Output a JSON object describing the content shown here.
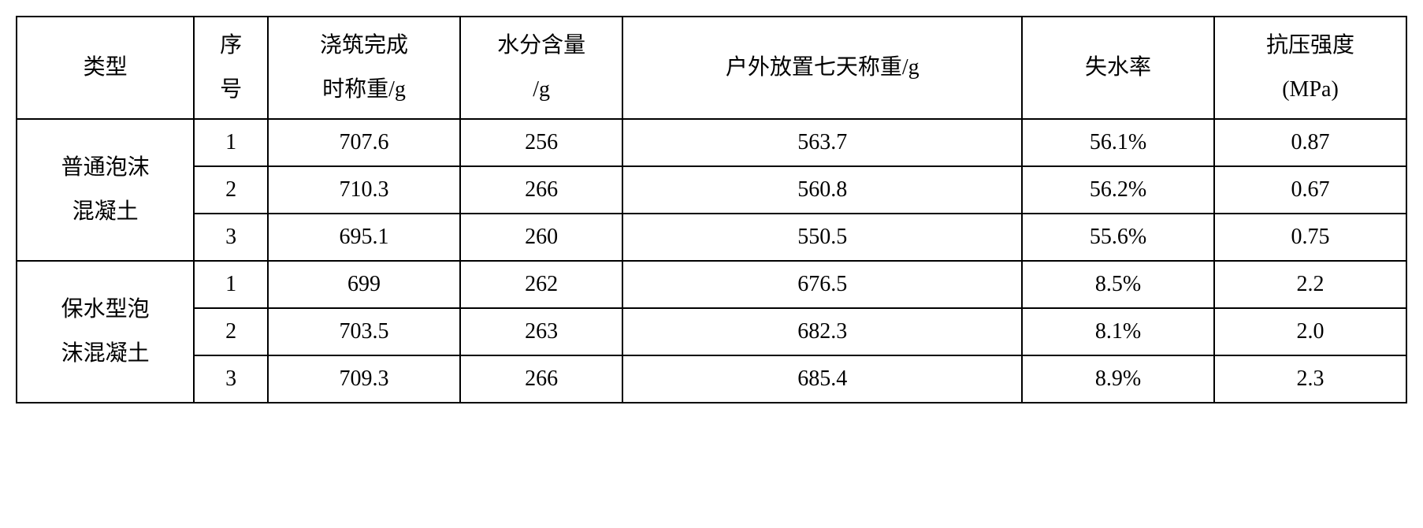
{
  "table": {
    "headers": {
      "type": "类型",
      "seq_line1": "序",
      "seq_line2": "号",
      "weight_pour_line1": "浇筑完成",
      "weight_pour_line2": "时称重/g",
      "moisture_line1": "水分含量",
      "moisture_line2": "/g",
      "weight_7days": "户外放置七天称重/g",
      "loss_rate": "失水率",
      "strength_line1": "抗压强度",
      "strength_line2": "(MPa)"
    },
    "groups": [
      {
        "label_line1": "普通泡沫",
        "label_line2": "混凝土",
        "rows": [
          {
            "seq": "1",
            "weight_pour": "707.6",
            "moisture": "256",
            "weight_7days": "563.7",
            "loss_rate": "56.1%",
            "strength": "0.87"
          },
          {
            "seq": "2",
            "weight_pour": "710.3",
            "moisture": "266",
            "weight_7days": "560.8",
            "loss_rate": "56.2%",
            "strength": "0.67"
          },
          {
            "seq": "3",
            "weight_pour": "695.1",
            "moisture": "260",
            "weight_7days": "550.5",
            "loss_rate": "55.6%",
            "strength": "0.75"
          }
        ]
      },
      {
        "label_line1": "保水型泡",
        "label_line2": "沫混凝土",
        "rows": [
          {
            "seq": "1",
            "weight_pour": "699",
            "moisture": "262",
            "weight_7days": "676.5",
            "loss_rate": "8.5%",
            "strength": "2.2"
          },
          {
            "seq": "2",
            "weight_pour": "703.5",
            "moisture": "263",
            "weight_7days": "682.3",
            "loss_rate": "8.1%",
            "strength": "2.0"
          },
          {
            "seq": "3",
            "weight_pour": "709.3",
            "moisture": "266",
            "weight_7days": "685.4",
            "loss_rate": "8.9%",
            "strength": "2.3"
          }
        ]
      }
    ]
  }
}
